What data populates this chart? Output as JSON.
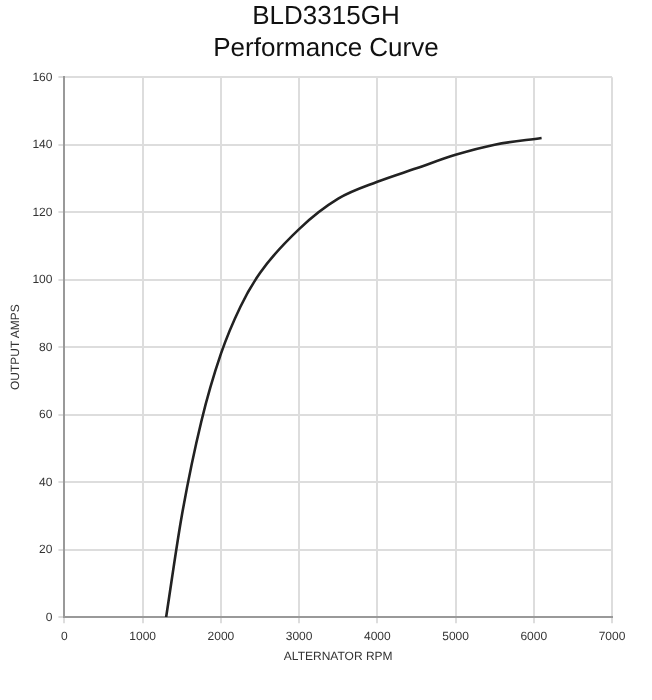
{
  "chart_data": {
    "type": "line",
    "title": "BLD3315GH",
    "subtitle": "Performance Curve",
    "xlabel": "ALTERNATOR RPM",
    "ylabel": "OUTPUT AMPS",
    "x": [
      1300,
      1500,
      1750,
      2000,
      2250,
      2500,
      3000,
      3500,
      4000,
      4500,
      5000,
      5500,
      6100
    ],
    "series": [
      {
        "color": "#222222",
        "values": [
          0,
          30,
          58,
          78,
          92,
          102,
          115,
          124,
          129,
          133,
          137,
          140,
          142
        ]
      }
    ],
    "xlim": [
      0,
      7000
    ],
    "xticks": [
      0,
      1000,
      2000,
      3000,
      4000,
      5000,
      6000,
      7000
    ],
    "ylim": [
      0,
      160
    ],
    "yticks": [
      0,
      20,
      40,
      60,
      80,
      100,
      120,
      140,
      160
    ],
    "grid": true,
    "legend": false,
    "marker": "none",
    "line_style": "solid"
  }
}
